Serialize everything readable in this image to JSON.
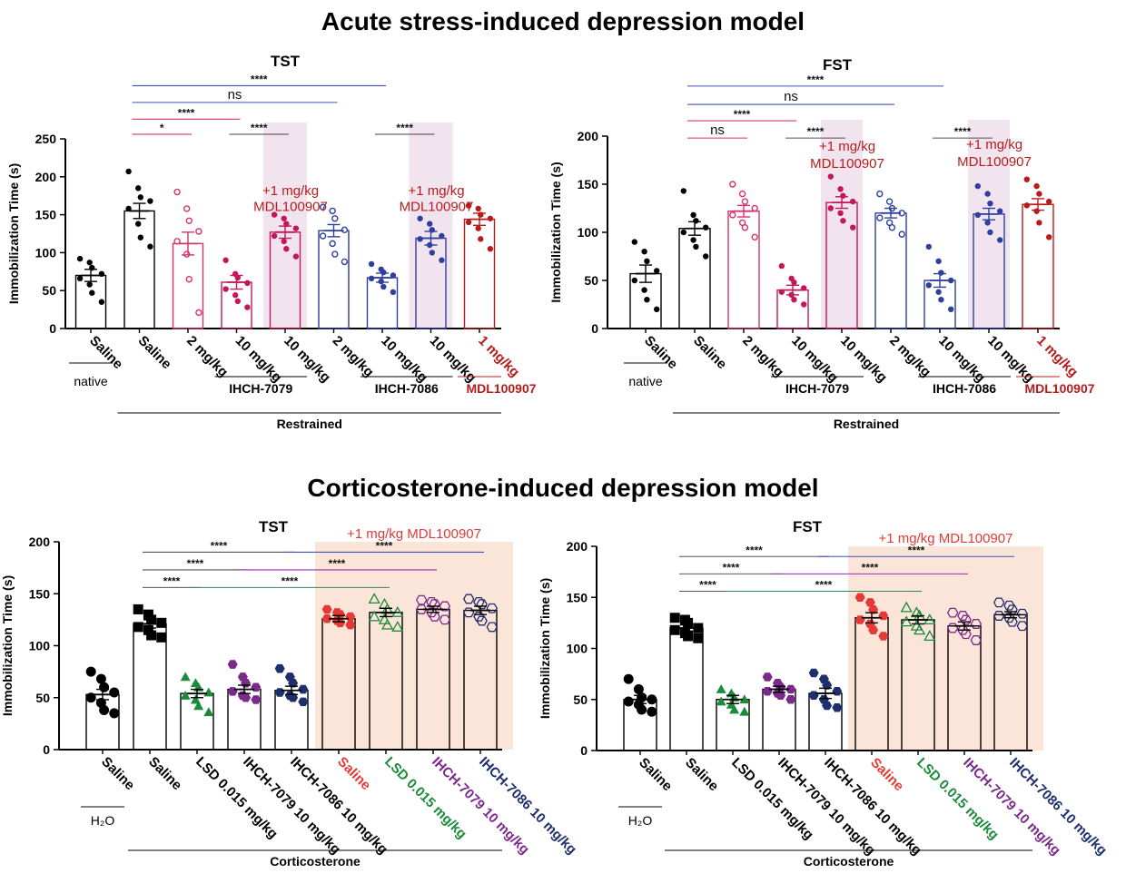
{
  "titles": {
    "acute": "Acute stress-induced depression model",
    "cort": "Corticosterone-induced depression model"
  },
  "colors": {
    "black": "#000000",
    "pink": "#d6336c",
    "magenta": "#c2185b",
    "blue": "#2e3f9e",
    "darkred": "#b71c1c",
    "red": "#e53935",
    "green": "#1b8a3a",
    "purple": "#7b2a8c",
    "navy": "#1f2f6e",
    "shade_pink": "#f1e4ee",
    "shade_peach": "#fbe5d9",
    "line_black": "#555555",
    "line_pink": "#d6336c",
    "line_blue": "#3f51b5",
    "line_green": "#2e8b57",
    "line_purple": "#9c27b0"
  },
  "chart_data": [
    {
      "id": "acute-tst",
      "type": "bar",
      "title": "TST",
      "ylabel": "Immobilization Time (s)",
      "ylim": [
        0,
        250
      ],
      "yticks": [
        0,
        50,
        100,
        150,
        200,
        250
      ],
      "categories": [
        "Saline",
        "Saline",
        "2 mg/kg",
        "10 mg/kg",
        "10 mg/kg",
        "2 mg/kg",
        "10 mg/kg",
        "10 mg/kg",
        "1 mg/kg"
      ],
      "category_colors": [
        "black",
        "black",
        "black",
        "black",
        "black",
        "black",
        "black",
        "black",
        "darkred"
      ],
      "bar_colors": [
        "black",
        "black",
        "pink",
        "magenta",
        "magenta",
        "blue",
        "blue",
        "blue",
        "darkred"
      ],
      "marker": [
        "dot",
        "dot",
        "ring",
        "dot",
        "dot",
        "ring",
        "dot",
        "dot",
        "dot"
      ],
      "shaded": [
        4,
        7
      ],
      "means": [
        70,
        155,
        112,
        61,
        127,
        129,
        67,
        119,
        144
      ],
      "sems": [
        8,
        10,
        15,
        9,
        8,
        8,
        6,
        9,
        8
      ],
      "points": [
        [
          92,
          87,
          80,
          72,
          66,
          58,
          47,
          35
        ],
        [
          207,
          185,
          173,
          168,
          158,
          138,
          120,
          108
        ],
        [
          180,
          158,
          142,
          128,
          115,
          98,
          65,
          21
        ],
        [
          90,
          72,
          67,
          60,
          52,
          44,
          36,
          28
        ],
        [
          150,
          145,
          138,
          132,
          122,
          115,
          105,
          95
        ],
        [
          160,
          155,
          145,
          130,
          122,
          112,
          98,
          88
        ],
        [
          85,
          78,
          74,
          70,
          66,
          62,
          55,
          48
        ],
        [
          145,
          138,
          130,
          122,
          118,
          110,
          100,
          90
        ],
        [
          162,
          158,
          150,
          145,
          140,
          132,
          118,
          105
        ]
      ],
      "group_labels": [
        {
          "text": "native",
          "from": 0,
          "to": 0,
          "level": 1,
          "color": "black",
          "bold": false
        },
        {
          "text": "IHCH-7079",
          "from": 3,
          "to": 4,
          "level": 1,
          "color": "black",
          "bold": true
        },
        {
          "text": "IHCH-7086",
          "from": 6,
          "to": 7,
          "level": 1,
          "color": "black",
          "bold": true
        },
        {
          "text": "MDL100907",
          "from": 8,
          "to": 8,
          "level": 1,
          "color": "darkred",
          "bold": true
        },
        {
          "text": "Restrained",
          "from": 1,
          "to": 8,
          "level": 2,
          "color": "black",
          "bold": true
        }
      ],
      "annotations": [
        {
          "text": "+1 mg/kg",
          "at": 4,
          "y": 176,
          "color": "darkred"
        },
        {
          "text": "MDL100907",
          "at": 4,
          "y": 155,
          "color": "darkred"
        },
        {
          "text": "+1 mg/kg",
          "at": 7,
          "y": 176,
          "color": "darkred"
        },
        {
          "text": "MDL100907",
          "at": 7,
          "y": 155,
          "color": "darkred"
        }
      ],
      "comparisons": [
        {
          "from": 1,
          "to": 6,
          "y": 320,
          "label": "****",
          "color": "line_blue"
        },
        {
          "from": 1,
          "to": 5,
          "y": 298,
          "label": "ns",
          "color": "line_blue"
        },
        {
          "from": 1,
          "to": 3,
          "y": 276,
          "label": "****",
          "color": "line_pink"
        },
        {
          "from": 1,
          "to": 2,
          "y": 256,
          "label": "*",
          "color": "line_pink"
        },
        {
          "from": 3,
          "to": 4,
          "y": 256,
          "label": "****",
          "color": "line_black"
        },
        {
          "from": 6,
          "to": 7,
          "y": 256,
          "label": "****",
          "color": "line_black"
        }
      ]
    },
    {
      "id": "acute-fst",
      "type": "bar",
      "title": "FST",
      "ylabel": "Immobilization Time (s)",
      "ylim": [
        0,
        200
      ],
      "yticks": [
        0,
        50,
        100,
        150,
        200
      ],
      "categories": [
        "Saline",
        "Saline",
        "2 mg/kg",
        "10 mg/kg",
        "10 mg/kg",
        "2 mg/kg",
        "10 mg/kg",
        "10 mg/kg",
        "1 mg/kg"
      ],
      "category_colors": [
        "black",
        "black",
        "black",
        "black",
        "black",
        "black",
        "black",
        "black",
        "darkred"
      ],
      "bar_colors": [
        "black",
        "black",
        "pink",
        "magenta",
        "magenta",
        "blue",
        "blue",
        "blue",
        "darkred"
      ],
      "marker": [
        "dot",
        "dot",
        "ring",
        "dot",
        "dot",
        "ring",
        "dot",
        "dot",
        "dot"
      ],
      "shaded": [
        4,
        7
      ],
      "means": [
        57,
        104,
        122,
        40,
        131,
        120,
        50,
        119,
        129
      ],
      "sems": [
        9,
        7,
        6,
        5,
        6,
        5,
        7,
        6,
        6
      ],
      "points": [
        [
          90,
          80,
          70,
          60,
          50,
          40,
          30,
          20
        ],
        [
          143,
          118,
          112,
          105,
          100,
          92,
          85,
          75
        ],
        [
          150,
          140,
          132,
          125,
          118,
          110,
          105,
          95
        ],
        [
          65,
          52,
          48,
          42,
          38,
          35,
          30,
          25
        ],
        [
          158,
          145,
          138,
          132,
          125,
          120,
          112,
          105
        ],
        [
          140,
          132,
          125,
          120,
          115,
          110,
          105,
          98
        ],
        [
          85,
          70,
          58,
          50,
          45,
          38,
          30,
          20
        ],
        [
          148,
          140,
          130,
          122,
          118,
          110,
          100,
          92
        ],
        [
          155,
          148,
          140,
          132,
          128,
          122,
          110,
          95
        ]
      ],
      "group_labels": [
        {
          "text": "native",
          "from": 0,
          "to": 0,
          "level": 1,
          "color": "black",
          "bold": false
        },
        {
          "text": "IHCH-7079",
          "from": 3,
          "to": 4,
          "level": 1,
          "color": "black",
          "bold": true
        },
        {
          "text": "IHCH-7086",
          "from": 6,
          "to": 7,
          "level": 1,
          "color": "black",
          "bold": true
        },
        {
          "text": "MDL100907",
          "from": 8,
          "to": 8,
          "level": 1,
          "color": "darkred",
          "bold": true
        },
        {
          "text": "Restrained",
          "from": 1,
          "to": 8,
          "level": 2,
          "color": "black",
          "bold": true
        }
      ],
      "annotations": [
        {
          "text": "+1 mg/kg",
          "at": 4,
          "y": 185,
          "color": "darkred"
        },
        {
          "text": "MDL100907",
          "at": 4,
          "y": 167,
          "color": "darkred"
        },
        {
          "text": "+1 mg/kg",
          "at": 7,
          "y": 187,
          "color": "darkred"
        },
        {
          "text": "MDL100907",
          "at": 7,
          "y": 169,
          "color": "darkred"
        }
      ],
      "comparisons": [
        {
          "from": 1,
          "to": 6,
          "y": 252,
          "label": "****",
          "color": "line_blue"
        },
        {
          "from": 1,
          "to": 5,
          "y": 233,
          "label": "ns",
          "color": "line_blue"
        },
        {
          "from": 1,
          "to": 3,
          "y": 216,
          "label": "****",
          "color": "line_pink"
        },
        {
          "from": 1,
          "to": 2,
          "y": 198,
          "label": "ns",
          "color": "line_pink"
        },
        {
          "from": 3,
          "to": 4,
          "y": 198,
          "label": "****",
          "color": "line_black"
        },
        {
          "from": 6,
          "to": 7,
          "y": 198,
          "label": "****",
          "color": "line_black"
        }
      ]
    },
    {
      "id": "cort-tst",
      "type": "bar",
      "title": "TST",
      "ylabel": "Immobilization Time (s)",
      "ylim": [
        0,
        200
      ],
      "yticks": [
        0,
        50,
        100,
        150,
        200
      ],
      "categories": [
        "Saline",
        "Saline",
        "LSD 0.015 mg/kg",
        "IHCH-7079 10 mg/kg",
        "IHCH-7086 10 mg/kg",
        "Saline",
        "LSD 0.015 mg/kg",
        "IHCH-7079 10 mg/kg",
        "IHCH-7086 10 mg/kg"
      ],
      "category_colors": [
        "black",
        "black",
        "black",
        "black",
        "black",
        "red",
        "green",
        "purple",
        "navy"
      ],
      "bar_colors": [
        "black",
        "black",
        "black",
        "black",
        "black",
        "black",
        "black",
        "black",
        "black"
      ],
      "point_colors": [
        "black",
        "black",
        "green",
        "purple",
        "navy",
        "red",
        "green",
        "purple",
        "navy"
      ],
      "marker": [
        "circle",
        "square",
        "triangle",
        "hexagon",
        "hexagon",
        "hexagon",
        "triangle-open",
        "hexagon-open",
        "hexagon-open"
      ],
      "shaded_block": [
        5,
        8
      ],
      "shaded_label": "+1 mg/kg MDL100907",
      "means": [
        53,
        121,
        54,
        58,
        57,
        126,
        132,
        135,
        134
      ],
      "sems": [
        5,
        4,
        4,
        4,
        4,
        3,
        4,
        3,
        4
      ],
      "points": [
        [
          75,
          68,
          60,
          55,
          50,
          45,
          38,
          35
        ],
        [
          135,
          130,
          125,
          122,
          118,
          115,
          110,
          108
        ],
        [
          70,
          64,
          60,
          55,
          52,
          48,
          42,
          36
        ],
        [
          82,
          70,
          64,
          60,
          56,
          52,
          50,
          48
        ],
        [
          78,
          70,
          64,
          58,
          55,
          52,
          50,
          46
        ],
        [
          135,
          132,
          130,
          128,
          126,
          124,
          122,
          120
        ],
        [
          145,
          140,
          135,
          132,
          128,
          125,
          120,
          118
        ],
        [
          144,
          142,
          140,
          138,
          135,
          132,
          128,
          125
        ],
        [
          145,
          142,
          140,
          136,
          132,
          128,
          124,
          118
        ]
      ],
      "group_labels": [
        {
          "text": "H₂O",
          "from": 0,
          "to": 0,
          "level": 1,
          "color": "black",
          "bold": false
        },
        {
          "text": "Corticosterone",
          "from": 1,
          "to": 8,
          "level": 2,
          "color": "black",
          "bold": true
        }
      ],
      "comparisons": [
        {
          "from": 1,
          "to": 4,
          "y": 190,
          "label": "****",
          "color": "line_black"
        },
        {
          "from": 4,
          "to": 8,
          "y": 190,
          "label": "****",
          "color": "line_blue"
        },
        {
          "from": 1,
          "to": 3,
          "y": 173,
          "label": "****",
          "color": "line_black"
        },
        {
          "from": 3,
          "to": 7,
          "y": 173,
          "label": "****",
          "color": "line_purple"
        },
        {
          "from": 1,
          "to": 2,
          "y": 156,
          "label": "****",
          "color": "line_black"
        },
        {
          "from": 2,
          "to": 6,
          "y": 156,
          "label": "****",
          "color": "line_green"
        }
      ]
    },
    {
      "id": "cort-fst",
      "type": "bar",
      "title": "FST",
      "ylabel": "Immobilization Time (s)",
      "ylim": [
        0,
        200
      ],
      "yticks": [
        0,
        50,
        100,
        150,
        200
      ],
      "categories": [
        "Saline",
        "Saline",
        "LSD 0.015 mg/kg",
        "IHCH-7079 10 mg/kg",
        "IHCH-7086 10 mg/kg",
        "Saline",
        "LSD 0.015 mg/kg",
        "IHCH-7079 10 mg/kg",
        "IHCH-7086 10 mg/kg"
      ],
      "category_colors": [
        "black",
        "black",
        "black",
        "black",
        "black",
        "red",
        "green",
        "purple",
        "navy"
      ],
      "bar_colors": [
        "black",
        "black",
        "black",
        "black",
        "black",
        "black",
        "black",
        "black",
        "black"
      ],
      "point_colors": [
        "black",
        "black",
        "green",
        "purple",
        "navy",
        "red",
        "green",
        "purple",
        "navy"
      ],
      "marker": [
        "circle",
        "square",
        "triangle",
        "hexagon",
        "hexagon",
        "hexagon",
        "triangle-open",
        "hexagon-open",
        "hexagon-open"
      ],
      "shaded_block": [
        5,
        8
      ],
      "shaded_label": "+1 mg/kg MDL100907",
      "means": [
        50,
        120,
        50,
        60,
        56,
        130,
        128,
        122,
        133
      ],
      "sems": [
        4,
        3,
        4,
        3,
        5,
        5,
        4,
        4,
        3
      ],
      "points": [
        [
          70,
          60,
          52,
          50,
          48,
          45,
          40,
          38
        ],
        [
          130,
          128,
          125,
          120,
          118,
          115,
          112,
          110
        ],
        [
          60,
          56,
          52,
          50,
          48,
          45,
          40,
          38
        ],
        [
          72,
          66,
          62,
          60,
          58,
          56,
          54,
          50
        ],
        [
          76,
          70,
          64,
          58,
          54,
          50,
          44,
          42
        ],
        [
          150,
          145,
          138,
          132,
          128,
          124,
          118,
          112
        ],
        [
          140,
          135,
          132,
          128,
          126,
          122,
          118,
          112
        ],
        [
          135,
          132,
          128,
          124,
          120,
          118,
          114,
          108
        ],
        [
          145,
          142,
          138,
          134,
          132,
          130,
          126,
          122
        ]
      ],
      "group_labels": [
        {
          "text": "H₂O",
          "from": 0,
          "to": 0,
          "level": 1,
          "color": "black",
          "bold": false
        },
        {
          "text": "Corticosterone",
          "from": 1,
          "to": 8,
          "level": 2,
          "color": "black",
          "bold": true
        }
      ],
      "comparisons": [
        {
          "from": 1,
          "to": 4,
          "y": 190,
          "label": "****",
          "color": "line_black"
        },
        {
          "from": 4,
          "to": 8,
          "y": 190,
          "label": "****",
          "color": "line_blue"
        },
        {
          "from": 1,
          "to": 3,
          "y": 173,
          "label": "****",
          "color": "line_black"
        },
        {
          "from": 3,
          "to": 7,
          "y": 173,
          "label": "****",
          "color": "line_purple"
        },
        {
          "from": 1,
          "to": 2,
          "y": 156,
          "label": "****",
          "color": "line_black"
        },
        {
          "from": 2,
          "to": 6,
          "y": 156,
          "label": "****",
          "color": "line_green"
        }
      ]
    }
  ]
}
